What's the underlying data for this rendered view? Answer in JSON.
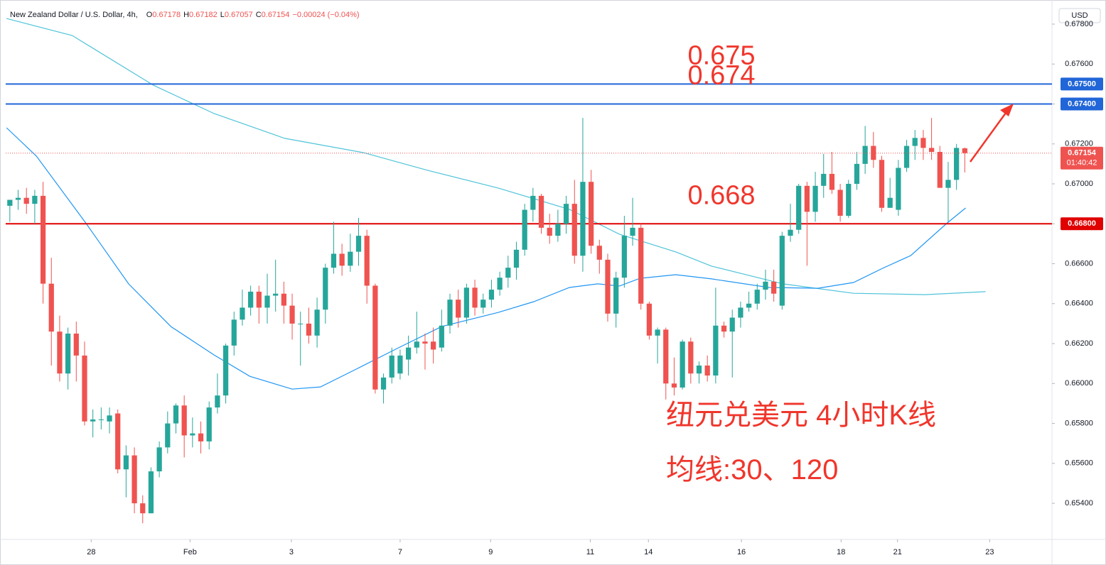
{
  "chart_data": {
    "type": "candlestick",
    "title": "New Zealand Dollar / U.S. Dollar, 4h,",
    "ohlc_letters": [
      "O",
      "H",
      "L",
      "C"
    ],
    "change": "−0.00024 (−0.04%)",
    "currency": "USD",
    "countdown": "01:40:42",
    "up_color": "#26a69a",
    "down_color": "#ef5350",
    "open": [
      0.6689,
      0.6692,
      0.6693,
      0.669,
      0.6694,
      0.665,
      0.6626,
      0.6605,
      0.6625,
      0.6614,
      0.6581,
      0.6582,
      0.6581,
      0.6585,
      0.6557,
      0.6564,
      0.654,
      0.6535,
      0.6556,
      0.6568,
      0.658,
      0.6589,
      0.6574,
      0.6575,
      0.6571,
      0.6588,
      0.6594,
      0.6619,
      0.6632,
      0.6638,
      0.6646,
      0.6638,
      0.6644,
      0.6645,
      0.6639,
      0.663,
      0.663,
      0.6624,
      0.6637,
      0.6658,
      0.6665,
      0.6659,
      0.6666,
      0.6674,
      0.6649,
      0.6597,
      0.6603,
      0.6605,
      0.6612,
      0.6618,
      0.6621,
      0.6621,
      0.6618,
      0.6629,
      0.6642,
      0.6633,
      0.6648,
      0.6638,
      0.6642,
      0.6647,
      0.6653,
      0.6658,
      0.6667,
      0.6687,
      0.6694,
      0.6678,
      0.6674,
      0.668,
      0.669,
      0.6664,
      0.6701,
      0.6669,
      0.6662,
      0.6635,
      0.6653,
      0.6674,
      0.6678,
      0.664,
      0.6624,
      0.6627,
      0.66,
      0.6598,
      0.6621,
      0.6605,
      0.6609,
      0.6604,
      0.6629,
      0.6626,
      0.6633,
      0.6638,
      0.664,
      0.6647,
      0.6651,
      0.6639,
      0.6674,
      0.6677,
      0.6699,
      0.6686,
      0.6699,
      0.6705,
      0.6697,
      0.6684,
      0.67,
      0.671,
      0.6719,
      0.6712,
      0.6688,
      0.6687,
      0.6708,
      0.6719,
      0.6723,
      0.6718,
      0.6716,
      0.6698,
      0.6702,
      0.67178
    ],
    "high": [
      0.6692,
      0.6697,
      0.6698,
      0.6697,
      0.6701,
      0.6663,
      0.6634,
      0.6628,
      0.6631,
      0.6621,
      0.6587,
      0.6588,
      0.6588,
      0.6587,
      0.6569,
      0.6568,
      0.6544,
      0.6558,
      0.6571,
      0.6586,
      0.659,
      0.6594,
      0.6583,
      0.6581,
      0.6591,
      0.6605,
      0.662,
      0.6636,
      0.6647,
      0.6649,
      0.6649,
      0.6655,
      0.6662,
      0.6651,
      0.6645,
      0.6636,
      0.6638,
      0.6643,
      0.666,
      0.6681,
      0.667,
      0.6675,
      0.6683,
      0.6677,
      0.665,
      0.6605,
      0.6618,
      0.6617,
      0.6624,
      0.6636,
      0.6625,
      0.6628,
      0.6637,
      0.6645,
      0.6647,
      0.665,
      0.6652,
      0.6645,
      0.6652,
      0.6656,
      0.6664,
      0.6671,
      0.669,
      0.6698,
      0.6695,
      0.6685,
      0.6687,
      0.6694,
      0.6702,
      0.6733,
      0.6707,
      0.6672,
      0.6665,
      0.6656,
      0.6684,
      0.6693,
      0.668,
      0.6641,
      0.6628,
      0.6628,
      0.6613,
      0.6622,
      0.6623,
      0.6611,
      0.6614,
      0.6648,
      0.6631,
      0.6637,
      0.6641,
      0.6646,
      0.665,
      0.6657,
      0.6657,
      0.6676,
      0.669,
      0.67,
      0.6701,
      0.6706,
      0.6715,
      0.6716,
      0.67,
      0.6702,
      0.6716,
      0.6729,
      0.6726,
      0.6714,
      0.6703,
      0.6712,
      0.6722,
      0.6727,
      0.6727,
      0.6733,
      0.6719,
      0.6711,
      0.672,
      0.67182
    ],
    "low": [
      0.6681,
      0.6687,
      0.6685,
      0.668,
      0.664,
      0.6609,
      0.6601,
      0.6597,
      0.6601,
      0.6579,
      0.6573,
      0.6577,
      0.6575,
      0.6555,
      0.6543,
      0.6535,
      0.653,
      0.6535,
      0.6553,
      0.6565,
      0.6575,
      0.6563,
      0.6568,
      0.6565,
      0.6567,
      0.6585,
      0.659,
      0.6614,
      0.6629,
      0.6634,
      0.663,
      0.663,
      0.6636,
      0.663,
      0.6622,
      0.6609,
      0.662,
      0.6618,
      0.663,
      0.6655,
      0.6654,
      0.6656,
      0.6659,
      0.664,
      0.6595,
      0.659,
      0.66,
      0.6602,
      0.6604,
      0.6615,
      0.6607,
      0.661,
      0.6616,
      0.6625,
      0.6628,
      0.663,
      0.6634,
      0.6635,
      0.6638,
      0.6644,
      0.6648,
      0.6652,
      0.6664,
      0.6681,
      0.6675,
      0.667,
      0.6671,
      0.6675,
      0.666,
      0.6656,
      0.6665,
      0.6655,
      0.6631,
      0.6628,
      0.6648,
      0.6669,
      0.6637,
      0.6622,
      0.661,
      0.6592,
      0.6594,
      0.6597,
      0.66,
      0.66,
      0.6601,
      0.66,
      0.6623,
      0.6603,
      0.6628,
      0.6636,
      0.6637,
      0.6642,
      0.6641,
      0.6637,
      0.6671,
      0.6675,
      0.6659,
      0.6681,
      0.6693,
      0.6695,
      0.6681,
      0.6683,
      0.6697,
      0.6705,
      0.6708,
      0.6686,
      0.6688,
      0.6684,
      0.6706,
      0.6712,
      0.6712,
      0.6712,
      0.6698,
      0.6681,
      0.6697,
      0.67057
    ],
    "close": [
      0.6692,
      0.6693,
      0.669,
      0.6694,
      0.665,
      0.6626,
      0.6605,
      0.6625,
      0.6614,
      0.6581,
      0.6582,
      0.6582,
      0.6584,
      0.6557,
      0.6564,
      0.654,
      0.6535,
      0.6556,
      0.6568,
      0.658,
      0.6589,
      0.6574,
      0.6575,
      0.6571,
      0.6588,
      0.6594,
      0.6619,
      0.6632,
      0.6638,
      0.6646,
      0.6638,
      0.6644,
      0.6645,
      0.6639,
      0.663,
      0.663,
      0.6624,
      0.6637,
      0.6658,
      0.6665,
      0.6659,
      0.6666,
      0.6674,
      0.6649,
      0.6597,
      0.6603,
      0.6614,
      0.6614,
      0.6618,
      0.6621,
      0.662,
      0.6617,
      0.6629,
      0.6642,
      0.6633,
      0.6648,
      0.6638,
      0.6642,
      0.6647,
      0.6653,
      0.6658,
      0.6667,
      0.6687,
      0.6694,
      0.6678,
      0.6674,
      0.668,
      0.669,
      0.6664,
      0.6701,
      0.6669,
      0.6662,
      0.6635,
      0.6653,
      0.6674,
      0.6678,
      0.664,
      0.6624,
      0.6627,
      0.66,
      0.6598,
      0.6621,
      0.6605,
      0.6609,
      0.6604,
      0.6629,
      0.6626,
      0.6633,
      0.6638,
      0.664,
      0.6647,
      0.6651,
      0.6645,
      0.6674,
      0.6677,
      0.6699,
      0.6686,
      0.6699,
      0.6705,
      0.6697,
      0.6684,
      0.67,
      0.671,
      0.6719,
      0.6712,
      0.6688,
      0.6693,
      0.6708,
      0.6719,
      0.6723,
      0.6718,
      0.6716,
      0.6698,
      0.6702,
      0.6718,
      0.67154
    ],
    "lines": [
      {
        "color": "#4fc3d9",
        "x": [
          -0.4,
          7.5,
          17.3,
          24.6,
          33.1,
          42.6,
          50.3,
          58.8,
          67.4,
          73.4,
          80.2,
          84.5,
          93.1,
          101.6,
          110.2,
          117.5
        ],
        "values": [
          0.67828,
          0.67743,
          0.67494,
          0.67352,
          0.67228,
          0.67156,
          0.67068,
          0.66979,
          0.66872,
          0.66748,
          0.66659,
          0.66588,
          0.66499,
          0.66452,
          0.66445,
          0.6646
        ]
      },
      {
        "color": "#2196f3",
        "x": [
          -0.4,
          3.2,
          9.2,
          14.3,
          19.4,
          24.6,
          28.9,
          34.0,
          37.4,
          41.7,
          46.8,
          52.0,
          58.8,
          63.1,
          67.4,
          70.8,
          73.4,
          75.9,
          80.2,
          84.5,
          91.4,
          97.3,
          101.6,
          105.1,
          108.5,
          112.8,
          115.1
        ],
        "values": [
          0.67281,
          0.67139,
          0.66801,
          0.66499,
          0.66285,
          0.66143,
          0.66036,
          0.65972,
          0.65983,
          0.66072,
          0.66179,
          0.66285,
          0.66356,
          0.6641,
          0.66481,
          0.66499,
          0.66488,
          0.66527,
          0.66545,
          0.66524,
          0.66481,
          0.66477,
          0.66506,
          0.66577,
          0.66641,
          0.66801,
          0.66879
        ]
      }
    ],
    "hlines": [
      {
        "value": 0.675,
        "label": "0.67500",
        "color": "#2166d8"
      },
      {
        "value": 0.674,
        "label": "0.67400",
        "color": "#2166d8"
      },
      {
        "value": 0.668,
        "label": "0.66800",
        "color": "#e00000"
      }
    ],
    "annotations": [
      "纽元兑美元 4小时K线",
      "均线:30、120"
    ],
    "xlim": [
      -0.5,
      125.5
    ],
    "xticks": [
      {
        "value": 9.8,
        "label": "28"
      },
      {
        "value": 21.7,
        "label": "Feb"
      },
      {
        "value": 33.9,
        "label": "3"
      },
      {
        "value": 47.0,
        "label": "7"
      },
      {
        "value": 57.9,
        "label": "9"
      },
      {
        "value": 69.9,
        "label": "11"
      },
      {
        "value": 76.9,
        "label": "14"
      },
      {
        "value": 88.1,
        "label": "16"
      },
      {
        "value": 100.1,
        "label": "18"
      },
      {
        "value": 106.9,
        "label": "21"
      },
      {
        "value": 118.0,
        "label": "23"
      }
    ],
    "ylim": [
      0.65219,
      0.67903
    ],
    "yticks": [
      {
        "value": 0.654,
        "label": "0.65400"
      },
      {
        "value": 0.656,
        "label": "0.65600"
      },
      {
        "value": 0.658,
        "label": "0.65800"
      },
      {
        "value": 0.66,
        "label": "0.66000"
      },
      {
        "value": 0.662,
        "label": "0.66200"
      },
      {
        "value": 0.664,
        "label": "0.66400"
      },
      {
        "value": 0.666,
        "label": "0.66600"
      },
      {
        "value": 0.668,
        "label": "0.66800"
      },
      {
        "value": 0.67,
        "label": "0.67000"
      },
      {
        "value": 0.672,
        "label": "0.67200"
      },
      {
        "value": 0.674,
        "label": "0.67400"
      },
      {
        "value": 0.676,
        "label": "0.67600"
      },
      {
        "value": 0.678,
        "label": "0.67800"
      }
    ]
  }
}
